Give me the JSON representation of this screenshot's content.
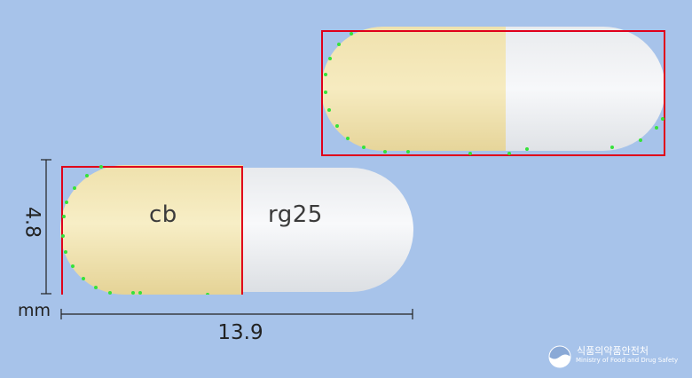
{
  "imprint": {
    "cap": "cb",
    "body": "rg25"
  },
  "dimensions": {
    "height": "4.8",
    "length": "13.9",
    "unit": "mm"
  },
  "agency": {
    "name_ko": "식품의약품안전처",
    "name_en": "Ministry of Food and Drug Safety"
  },
  "colors": {
    "background": "#a7c3ea",
    "cap_color": "#f4e6b3",
    "body_color": "#f2f3f5",
    "detection_box": "#e0001a",
    "contour_points": "#36e23a"
  }
}
